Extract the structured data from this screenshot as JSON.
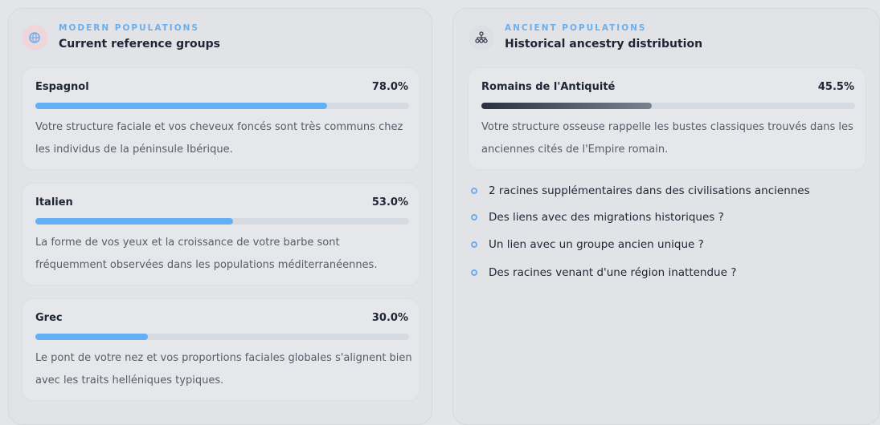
{
  "modern": {
    "eyebrow": "MODERN POPULATIONS",
    "title": "Current reference groups",
    "groups": [
      {
        "name": "Espagnol",
        "value": 78,
        "label": "78.0%",
        "text": "Votre structure faciale et vos cheveux foncés sont très communs chez les individus de la péninsule Ibérique."
      },
      {
        "name": "Italien",
        "value": 53,
        "label": "53.0%",
        "text": "La forme de vos yeux et la croissance de votre barbe sont fréquemment observées dans les populations méditerranéennes."
      },
      {
        "name": "Grec",
        "value": 30,
        "label": "30.0%",
        "text": "Le pont de votre nez et vos proportions faciales globales s'alignent bien avec les traits helléniques typiques."
      }
    ]
  },
  "ancient": {
    "eyebrow": "ANCIENT POPULATIONS",
    "title": "Historical ancestry distribution",
    "groups": [
      {
        "name": "Romains de l'Antiquité",
        "value": 45.5,
        "label": "45.5%",
        "text": "Votre structure osseuse rappelle les bustes classiques trouvés dans les anciennes cités de l'Empire romain."
      }
    ],
    "teasers": [
      "2 racines supplémentaires dans des civilisations anciennes",
      "Des liens avec des migrations historiques ?",
      "Un lien avec un groupe ancien unique ?",
      "Des racines venant d'une région inattendue ?"
    ]
  }
}
